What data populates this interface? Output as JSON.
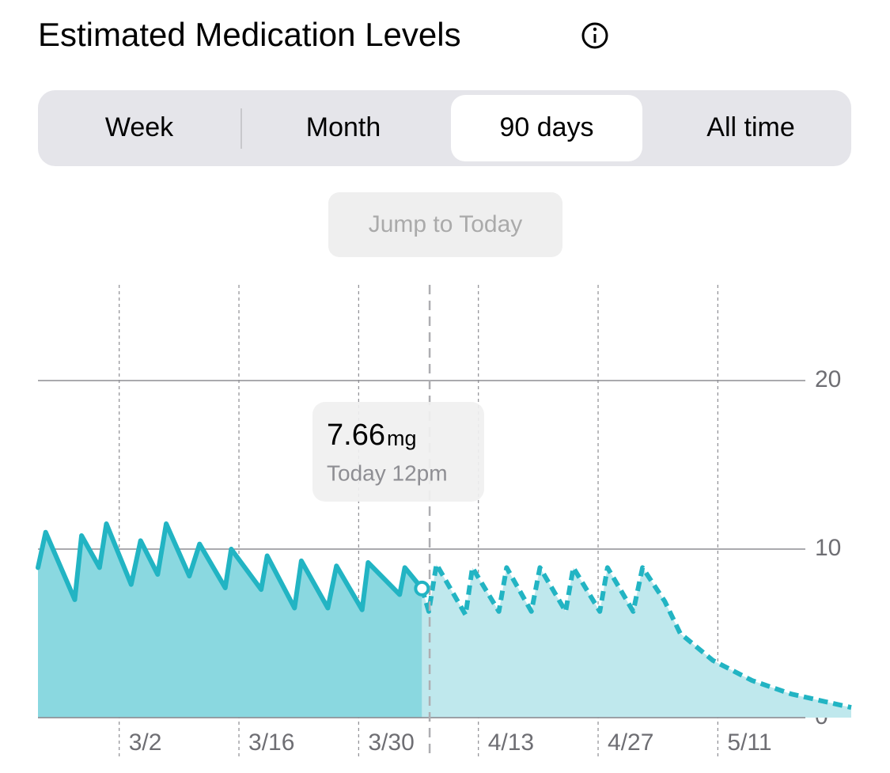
{
  "header": {
    "title": "Estimated Medication Levels"
  },
  "segmented_control": {
    "options": [
      "Week",
      "Month",
      "90 days",
      "All time"
    ],
    "selected": 2
  },
  "button": {
    "label": "Jump to Today"
  },
  "chart_data": {
    "type": "area-line",
    "annotation": {
      "value": 7.66,
      "unit": "mg",
      "label": "Today 12pm",
      "x": 97.3
    },
    "series": [
      {
        "color": "#22b4c3",
        "fill": "#8ad8e0",
        "style": "solid",
        "x": [
          51.5,
          52.4,
          55.8,
          56.6,
          58.7,
          59.5,
          62.4,
          63.5,
          65.5,
          66.5,
          69.2,
          70.4,
          73.4,
          74.1,
          77.6,
          78.3,
          81.5,
          82.3,
          85.4,
          86.4,
          89.4,
          90.1,
          93.8,
          94.4,
          96.4
        ],
        "values": [
          8.9,
          11.0,
          7.0,
          10.8,
          8.9,
          11.5,
          7.9,
          10.5,
          8.5,
          11.5,
          8.4,
          10.3,
          7.7,
          10.0,
          7.6,
          9.6,
          6.5,
          9.3,
          6.5,
          9.0,
          6.4,
          9.2,
          7.3,
          8.9,
          7.66
        ]
      },
      {
        "color": "#22b4c3",
        "fill": "#bfe8ed",
        "style": "dashed",
        "x": [
          96.4,
          97.2,
          98.1,
          101.5,
          102.3,
          105.4,
          106.3,
          109.2,
          110.2,
          113.2,
          114.1,
          117.2,
          118.1,
          121.1,
          122.2,
          124.8,
          126.6,
          130.4,
          135.0,
          139.6,
          146.6
        ],
        "values": [
          7.66,
          6.3,
          9.1,
          6.1,
          8.9,
          6.3,
          8.9,
          6.3,
          8.9,
          6.3,
          8.9,
          6.3,
          8.9,
          6.3,
          8.9,
          6.9,
          5.0,
          3.4,
          2.2,
          1.4,
          0.6
        ]
      }
    ],
    "xlim": [
      51.5,
      146.6
    ],
    "xticks": [
      {
        "value": 61,
        "label": "3/2"
      },
      {
        "value": 75,
        "label": "3/16"
      },
      {
        "value": 89,
        "label": "3/30"
      },
      {
        "value": 103,
        "label": "4/13"
      },
      {
        "value": 117,
        "label": "4/27"
      },
      {
        "value": 131,
        "label": "5/11"
      }
    ],
    "ylim": [
      0,
      20
    ],
    "yticks": [
      0,
      10,
      20
    ],
    "grid": true
  }
}
